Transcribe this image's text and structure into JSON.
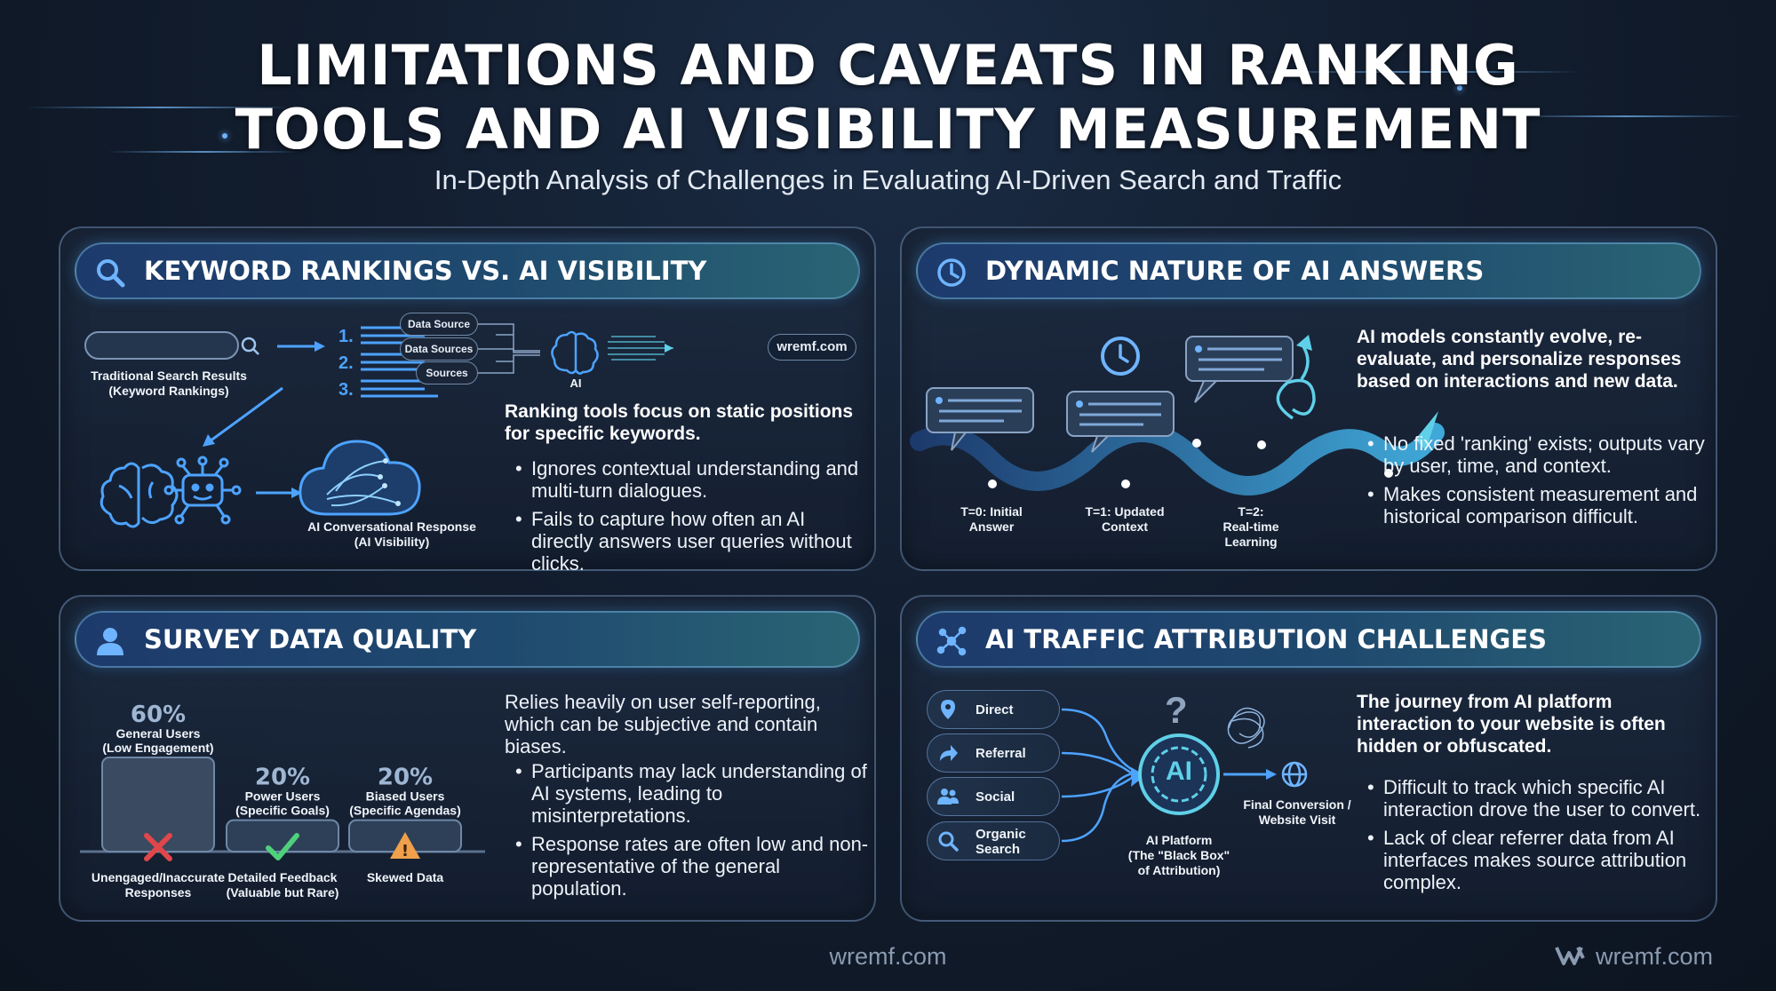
{
  "header": {
    "title_line1": "LIMITATIONS AND CAVEATS IN RANKING",
    "title_line2": "TOOLS AND AI VISIBILITY MEASUREMENT",
    "subtitle": "In-Depth Analysis of Challenges in Evaluating AI-Driven Search and Traffic"
  },
  "keyword_panel": {
    "title": "KEYWORD RANKINGS VS. AI VISIBILITY",
    "icon": "search-icon",
    "rank_numbers": [
      "1.",
      "2.",
      "3."
    ],
    "search_caption_1": "Traditional Search Results",
    "search_caption_2": "(Keyword Rankings)",
    "ai_caption_1": "AI Conversational Response",
    "ai_caption_2": "(AI Visibility)",
    "sources": [
      "Data Source",
      "Data Sources",
      "Sources"
    ],
    "ai_label": "AI",
    "site_chip": "wremf.com",
    "lead": "Ranking tools focus on static positions for specific keywords.",
    "bullets": [
      "Ignores contextual understanding and multi-turn dialogues.",
      "Fails to capture how often an AI directly answers user queries without clicks."
    ]
  },
  "dynamic_panel": {
    "title": "DYNAMIC NATURE OF AI ANSWERS",
    "icon": "clock-icon",
    "timeline": [
      {
        "l1": "T=0: Initial",
        "l2": "Answer",
        "l3": ""
      },
      {
        "l1": "T=1: Updated",
        "l2": "Context",
        "l3": ""
      },
      {
        "l1": "T=2:",
        "l2": "Real-time",
        "l3": "Learning"
      }
    ],
    "lead": "AI models constantly evolve, re-evaluate, and personalize responses based on interactions and new data.",
    "bullets": [
      "No fixed 'ranking' exists; outputs vary by user, time, and context.",
      "Makes consistent measurement and historical comparison difficult."
    ]
  },
  "survey_panel": {
    "title": "SURVEY DATA QUALITY",
    "icon": "user-icon",
    "chart_data": {
      "type": "bar",
      "categories": [
        "General Users (Low Engagement)",
        "Power Users (Specific Goals)",
        "Biased Users (Specific Agendas)"
      ],
      "values": [
        60,
        20,
        20
      ],
      "unit": "%",
      "labels": [
        {
          "pct": "60%",
          "name": "General Users",
          "sub": "(Low Engagement)",
          "out1": "Unengaged/Inaccurate",
          "out2": "Responses",
          "mark": "x"
        },
        {
          "pct": "20%",
          "name": "Power Users",
          "sub": "(Specific Goals)",
          "out1": "Detailed Feedback",
          "out2": "(Valuable but Rare)",
          "mark": "check"
        },
        {
          "pct": "20%",
          "name": "Biased Users",
          "sub": "(Specific Agendas)",
          "out1": "Skewed Data",
          "out2": "",
          "mark": "warning"
        }
      ],
      "colors": {
        "mark_x": "#e0464a",
        "mark_check": "#4fd07a",
        "mark_warning": "#f0a04a"
      }
    },
    "lead": "Relies heavily on user self-reporting, which can be subjective and contain biases.",
    "bullets": [
      "Participants may lack understanding of AI systems, leading to misinterpretations.",
      "Response rates are often low and non-representative of the general population."
    ]
  },
  "attribution_panel": {
    "title": "AI TRAFFIC ATTRIBUTION CHALLENGES",
    "icon": "network-icon",
    "channels": [
      {
        "l1": "Direct",
        "l2": "",
        "icon": "location-pin-icon"
      },
      {
        "l1": "Referral",
        "l2": "",
        "icon": "share-arrow-icon"
      },
      {
        "l1": "Social",
        "l2": "",
        "icon": "people-icon"
      },
      {
        "l1": "Organic",
        "l2": "Search",
        "icon": "search-icon"
      }
    ],
    "question": "?",
    "hub_text": "AI",
    "hub_caption_1": "AI Platform",
    "hub_caption_2": "(The \"Black Box\"",
    "hub_caption_3": "of Attribution)",
    "final_1": "Final Conversion /",
    "final_2": "Website Visit",
    "lead": "The journey from AI platform interaction to your website is often hidden or obfuscated.",
    "bullets": [
      "Difficult to track which specific AI interaction drove the user to convert.",
      "Lack of clear referrer data from AI interfaces makes source attribution complex."
    ]
  },
  "footer": {
    "center": "wremf.com",
    "right": "wremf.com"
  },
  "colors": {
    "accent": "#6fb4ff",
    "cyan": "#5fd0e8",
    "panel_border": "#6f88a6"
  }
}
